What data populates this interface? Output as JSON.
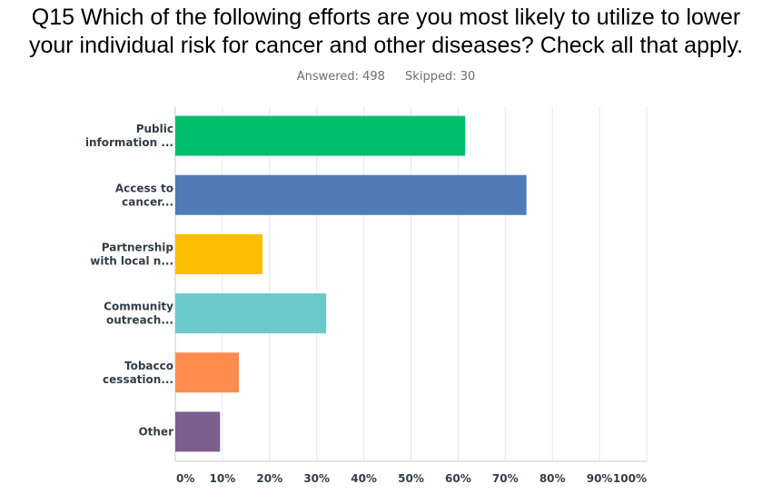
{
  "title_line1": "Q15 Which of the following efforts are you most likely to utilize to lower",
  "title_line2": "your individual risk for cancer and other diseases?  Check all that apply.",
  "answered": "Answered: 498",
  "skipped": "Skipped: 30",
  "chart_data": {
    "type": "bar",
    "orientation": "horizontal",
    "categories": [
      [
        "Public",
        "information ..."
      ],
      [
        "Access to",
        "cancer..."
      ],
      [
        "Partnership",
        "with local n..."
      ],
      [
        "Community",
        "outreach..."
      ],
      [
        "Tobacco",
        "cessation..."
      ],
      [
        "Other"
      ]
    ],
    "values": [
      61.5,
      74.5,
      18.5,
      32,
      13.5,
      9.5
    ],
    "colors": [
      "#00bf6f",
      "#507cb6",
      "#f9be00",
      "#6bc8cd",
      "#ff8b4f",
      "#7d5e90"
    ],
    "xlim": [
      0,
      100
    ],
    "x_ticks": [
      "0%",
      "10%",
      "20%",
      "30%",
      "40%",
      "50%",
      "60%",
      "70%",
      "80%",
      "90%",
      "100%"
    ],
    "grid": true
  }
}
